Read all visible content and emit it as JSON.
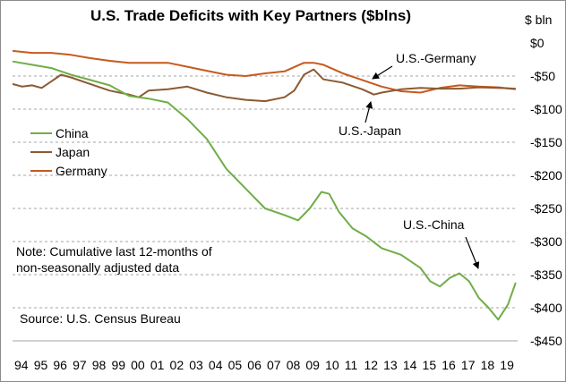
{
  "chart_data": {
    "type": "line",
    "title": "U.S. Trade Deficits with Key Partners ($blns)",
    "unit_label": "$ bln",
    "x_tick_labels": [
      "94",
      "95",
      "96",
      "97",
      "98",
      "99",
      "00",
      "01",
      "02",
      "03",
      "04",
      "05",
      "06",
      "07",
      "08",
      "09",
      "10",
      "11",
      "12",
      "13",
      "14",
      "15",
      "16",
      "17",
      "18",
      "19"
    ],
    "y_tick_labels": [
      "$0",
      "-$50",
      "-$100",
      "-$150",
      "-$200",
      "-$250",
      "-$300",
      "-$350",
      "-$400",
      "-$450"
    ],
    "xlim": [
      1994.0,
      2020.0
    ],
    "ylim": [
      -450,
      0
    ],
    "grid": "horizontal dashed",
    "legend_position": "left",
    "note": "Note:  Cumulative last 12-months of non-seasonally adjusted data",
    "source": "Source:  U.S. Census Bureau",
    "series": [
      {
        "name": "China",
        "color": "#70ad47",
        "points": [
          [
            1994.0,
            -28
          ],
          [
            1995.0,
            -33
          ],
          [
            1996.0,
            -38
          ],
          [
            1997.0,
            -48
          ],
          [
            1998.0,
            -56
          ],
          [
            1999.0,
            -64
          ],
          [
            2000.0,
            -80
          ],
          [
            2001.0,
            -84
          ],
          [
            2002.0,
            -90
          ],
          [
            2003.0,
            -115
          ],
          [
            2004.0,
            -145
          ],
          [
            2005.0,
            -190
          ],
          [
            2006.0,
            -220
          ],
          [
            2007.0,
            -250
          ],
          [
            2008.0,
            -260
          ],
          [
            2008.7,
            -268
          ],
          [
            2009.3,
            -250
          ],
          [
            2009.9,
            -225
          ],
          [
            2010.3,
            -228
          ],
          [
            2010.8,
            -255
          ],
          [
            2011.5,
            -280
          ],
          [
            2012.2,
            -292
          ],
          [
            2013.0,
            -310
          ],
          [
            2014.0,
            -320
          ],
          [
            2015.0,
            -340
          ],
          [
            2015.5,
            -360
          ],
          [
            2016.0,
            -368
          ],
          [
            2016.5,
            -355
          ],
          [
            2017.0,
            -348
          ],
          [
            2017.5,
            -360
          ],
          [
            2018.0,
            -385
          ],
          [
            2018.5,
            -400
          ],
          [
            2019.0,
            -418
          ],
          [
            2019.5,
            -395
          ],
          [
            2019.9,
            -362
          ]
        ]
      },
      {
        "name": "Japan",
        "color": "#8c5a32",
        "points": [
          [
            1994.0,
            -62
          ],
          [
            1994.5,
            -66
          ],
          [
            1995.0,
            -64
          ],
          [
            1995.5,
            -68
          ],
          [
            1996.0,
            -58
          ],
          [
            1996.5,
            -48
          ],
          [
            1997.0,
            -52
          ],
          [
            1998.0,
            -62
          ],
          [
            1999.0,
            -72
          ],
          [
            2000.0,
            -78
          ],
          [
            2000.5,
            -82
          ],
          [
            2001.0,
            -72
          ],
          [
            2002.0,
            -70
          ],
          [
            2003.0,
            -66
          ],
          [
            2004.0,
            -75
          ],
          [
            2005.0,
            -82
          ],
          [
            2006.0,
            -86
          ],
          [
            2007.0,
            -88
          ],
          [
            2008.0,
            -82
          ],
          [
            2008.5,
            -72
          ],
          [
            2009.0,
            -48
          ],
          [
            2009.5,
            -40
          ],
          [
            2010.0,
            -55
          ],
          [
            2011.0,
            -60
          ],
          [
            2012.0,
            -70
          ],
          [
            2012.6,
            -78
          ],
          [
            2013.0,
            -75
          ],
          [
            2014.0,
            -70
          ],
          [
            2015.0,
            -68
          ],
          [
            2016.0,
            -69
          ],
          [
            2017.0,
            -69
          ],
          [
            2018.0,
            -67
          ],
          [
            2019.0,
            -68
          ],
          [
            2019.9,
            -69
          ]
        ]
      },
      {
        "name": "Germany",
        "color": "#c65a1e",
        "points": [
          [
            1994.0,
            -12
          ],
          [
            1995.0,
            -15
          ],
          [
            1996.0,
            -15
          ],
          [
            1997.0,
            -18
          ],
          [
            1998.0,
            -23
          ],
          [
            1999.0,
            -27
          ],
          [
            2000.0,
            -30
          ],
          [
            2001.0,
            -30
          ],
          [
            2002.0,
            -30
          ],
          [
            2003.0,
            -36
          ],
          [
            2004.0,
            -42
          ],
          [
            2005.0,
            -48
          ],
          [
            2006.0,
            -50
          ],
          [
            2007.0,
            -46
          ],
          [
            2008.0,
            -43
          ],
          [
            2009.0,
            -30
          ],
          [
            2009.5,
            -30
          ],
          [
            2010.0,
            -33
          ],
          [
            2011.0,
            -46
          ],
          [
            2012.0,
            -56
          ],
          [
            2013.0,
            -66
          ],
          [
            2014.0,
            -73
          ],
          [
            2015.0,
            -75
          ],
          [
            2016.0,
            -68
          ],
          [
            2017.0,
            -64
          ],
          [
            2018.0,
            -66
          ],
          [
            2019.0,
            -67
          ],
          [
            2019.9,
            -70
          ]
        ]
      }
    ],
    "annotations": [
      {
        "text": "U.S.-Germany"
      },
      {
        "text": "U.S.-Japan"
      },
      {
        "text": "U.S.-China"
      }
    ]
  }
}
